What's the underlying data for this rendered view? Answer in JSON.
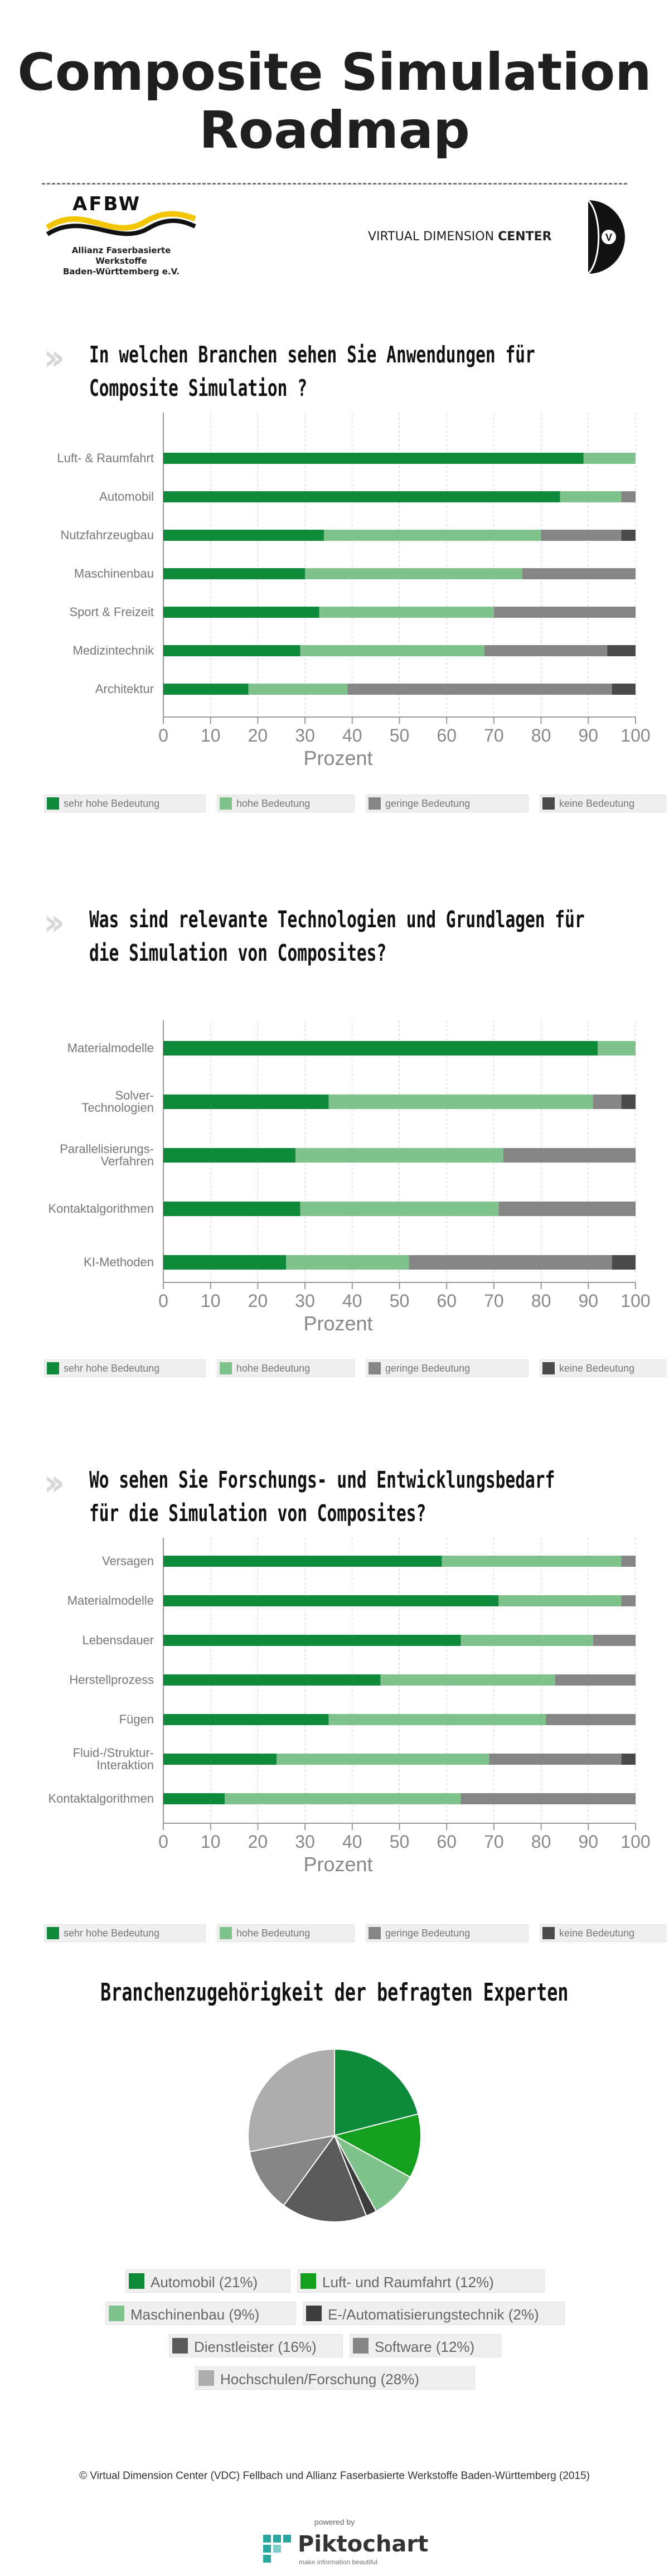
{
  "header": {
    "title_line1": "Composite Simulation",
    "title_line2": "Roadmap"
  },
  "logos": {
    "afbw_name": "AFBW",
    "afbw_sub1": "Allianz Faserbasierte Werkstoffe",
    "afbw_sub2": "Baden-Württemberg e.V.",
    "vdc_name_light": "VIRTUAL DIMENSION ",
    "vdc_name_bold": "CENTER",
    "vdc_mark": "V"
  },
  "colors": {
    "sehr_hohe": "#0f8a3a",
    "hohe": "#7fc28c",
    "geringe": "#858585",
    "keine": "#4a4a4a"
  },
  "chart_data": [
    {
      "type": "bar",
      "orientation": "horizontal",
      "stacked": true,
      "title_line1": "In welchen Branchen sehen Sie Anwendungen für",
      "title_line2": "Composite Simulation ?",
      "categories": [
        "Luft- & Raumfahrt",
        "Automobil",
        "Nutzfahrzeugbau",
        "Maschinenbau",
        "Sport & Freizeit",
        "Medizintechnik",
        "Architektur"
      ],
      "series": [
        {
          "name": "sehr hohe Bedeutung",
          "values": [
            89,
            84,
            34,
            30,
            33,
            29,
            18
          ]
        },
        {
          "name": "hohe Bedeutung",
          "values": [
            11,
            13,
            46,
            46,
            37,
            39,
            21
          ]
        },
        {
          "name": "geringe Bedeutung",
          "values": [
            0,
            3,
            17,
            24,
            30,
            26,
            56
          ]
        },
        {
          "name": "keine Bedeutung",
          "values": [
            0,
            0,
            3,
            0,
            0,
            6,
            5
          ]
        }
      ],
      "xlabel": "Prozent",
      "xlim": [
        0,
        100
      ],
      "xticks": [
        "0",
        "10",
        "20",
        "30",
        "40",
        "50",
        "60",
        "70",
        "80",
        "90",
        "100"
      ],
      "legend": "bottom"
    },
    {
      "type": "bar",
      "orientation": "horizontal",
      "stacked": true,
      "title_line1": "Was sind relevante Technologien und Grundlagen für",
      "title_line2": "die Simulation von Composites?",
      "categories": [
        [
          "Materialmodelle"
        ],
        [
          "Solver-",
          "Technologien"
        ],
        [
          "Parallelisierungs-",
          "Verfahren"
        ],
        [
          "Kontaktalgorithmen"
        ],
        [
          "KI-Methoden"
        ]
      ],
      "series": [
        {
          "name": "sehr hohe Bedeutung",
          "values": [
            92,
            35,
            28,
            29,
            26
          ]
        },
        {
          "name": "hohe Bedeutung",
          "values": [
            8,
            56,
            44,
            42,
            26
          ]
        },
        {
          "name": "geringe Bedeutung",
          "values": [
            0,
            6,
            28,
            29,
            43
          ]
        },
        {
          "name": "keine Bedeutung",
          "values": [
            0,
            3,
            0,
            0,
            5
          ]
        }
      ],
      "xlabel": "Prozent",
      "xlim": [
        0,
        100
      ],
      "xticks": [
        "0",
        "10",
        "20",
        "30",
        "40",
        "50",
        "60",
        "70",
        "80",
        "90",
        "100"
      ],
      "legend": "bottom"
    },
    {
      "type": "bar",
      "orientation": "horizontal",
      "stacked": true,
      "title_line1": "Wo sehen Sie Forschungs- und Entwicklungsbedarf",
      "title_line2": "für die Simulation von Composites?",
      "categories": [
        [
          "Versagen"
        ],
        [
          "Materialmodelle"
        ],
        [
          "Lebensdauer"
        ],
        [
          "Herstellprozess"
        ],
        [
          "Fügen"
        ],
        [
          "Fluid-/Struktur-",
          "Interaktion"
        ],
        [
          "Kontaktalgorithmen"
        ]
      ],
      "series": [
        {
          "name": "sehr hohe Bedeutung",
          "values": [
            59,
            71,
            63,
            46,
            35,
            24,
            13
          ]
        },
        {
          "name": "hohe Bedeutung",
          "values": [
            38,
            26,
            28,
            37,
            46,
            45,
            50
          ]
        },
        {
          "name": "geringe Bedeutung",
          "values": [
            3,
            3,
            9,
            17,
            19,
            28,
            37
          ]
        },
        {
          "name": "keine Bedeutung",
          "values": [
            0,
            0,
            0,
            0,
            0,
            3,
            0
          ]
        }
      ],
      "xlabel": "Prozent",
      "xlim": [
        0,
        100
      ],
      "xticks": [
        "0",
        "10",
        "20",
        "30",
        "40",
        "50",
        "60",
        "70",
        "80",
        "90",
        "100"
      ],
      "legend": "bottom"
    },
    {
      "type": "pie",
      "title": "Branchenzugehörigkeit der befragten Experten",
      "slices": [
        {
          "label": "Automobil (21%)",
          "value": 21,
          "color": "#0f8a3a"
        },
        {
          "label": "Luft- und Raumfahrt (12%)",
          "value": 12,
          "color": "#14a01e"
        },
        {
          "label": "Maschinenbau (9%)",
          "value": 9,
          "color": "#7fc28c"
        },
        {
          "label": "E-/Automatisierungstechnik (2%)",
          "value": 2,
          "color": "#3c3c3c"
        },
        {
          "label": "Dienstleister (16%)",
          "value": 16,
          "color": "#5a5a5a"
        },
        {
          "label": "Software (12%)",
          "value": 12,
          "color": "#858585"
        },
        {
          "label": "Hochschulen/Forschung (28%)",
          "value": 28,
          "color": "#adadad"
        }
      ],
      "legend": "bottom"
    }
  ],
  "footer": {
    "credit": "© Virtual Dimension Center (VDC) Fellbach und Allianz Faserbasierte Werkstoffe Baden-Württemberg (2015)",
    "powered_by": "powered by",
    "piktochart": "Piktochart",
    "piktochart_tagline": "make information beautiful"
  }
}
